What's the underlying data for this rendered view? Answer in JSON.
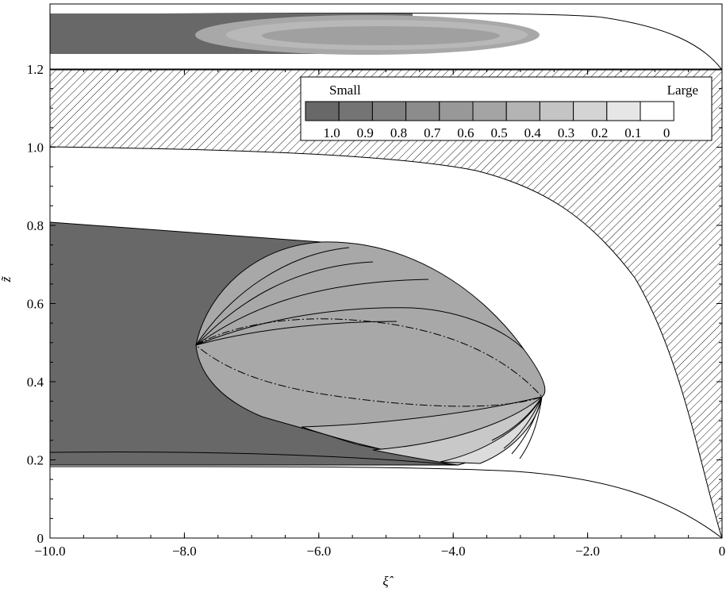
{
  "colors": {
    "region_dark": "#686868",
    "region_ellipse": "#a8a8a8",
    "outline": "#000000",
    "background": "#ffffff",
    "legend_scale": [
      "#686868",
      "#747474",
      "#808080",
      "#8c8c8c",
      "#989898",
      "#a4a4a4",
      "#b4b4b4",
      "#c4c4c4",
      "#d4d4d4",
      "#e6e6e6",
      "#ffffff"
    ]
  },
  "chart_data": [
    {
      "type": "area",
      "panel": "inset-overview",
      "description_elements": [
        "outer boundary curve",
        "dark band",
        "light ellipse"
      ]
    },
    {
      "type": "area",
      "panel": "main",
      "xlabel": "ξ̂",
      "ylabel": "z̃",
      "xlim": [
        -10.0,
        0
      ],
      "ylim": [
        0,
        1.2
      ],
      "x_ticks": [
        "−10.0",
        "−8.0",
        "−6.0",
        "−4.0",
        "−2.0",
        "0"
      ],
      "y_ticks": [
        "0",
        "0.2",
        "0.4",
        "0.6",
        "0.8",
        "1.0",
        "1.2"
      ],
      "legend": {
        "left_label": "Small",
        "right_label": "Large",
        "levels": [
          "1.0",
          "0.9",
          "0.8",
          "0.7",
          "0.6",
          "0.5",
          "0.4",
          "0.3",
          "0.2",
          "0.1",
          "0"
        ],
        "placement": "top-right"
      },
      "outer_boundary": {
        "z_at_x_min": 0.985,
        "description": "curve dropping to z=0 at ξ̂=0, hatched region above"
      },
      "lower_boundary": {
        "z_at_x_min": 0.195,
        "description": "curve dropping to z=0 at ξ̂=0"
      },
      "dark_region": {
        "top_z": 0.84,
        "bottom_z": 0.195,
        "extent_x": [
          -10.0,
          -4.1
        ]
      },
      "ellipse": {
        "left_tip": [
          -7.8,
          0.51
        ],
        "right_tip": [
          -2.75,
          0.385
        ],
        "top_z": 0.79,
        "bottom_z": 0.19
      },
      "dash_dot_curve": {
        "left": [
          -7.8,
          0.51
        ],
        "right": [
          -2.75,
          0.385
        ],
        "upper_z": 0.585,
        "lower_z": 0.345
      },
      "lower_contour": {
        "z_at_x_min": 0.225,
        "ends_at_x": -4.1
      }
    }
  ]
}
